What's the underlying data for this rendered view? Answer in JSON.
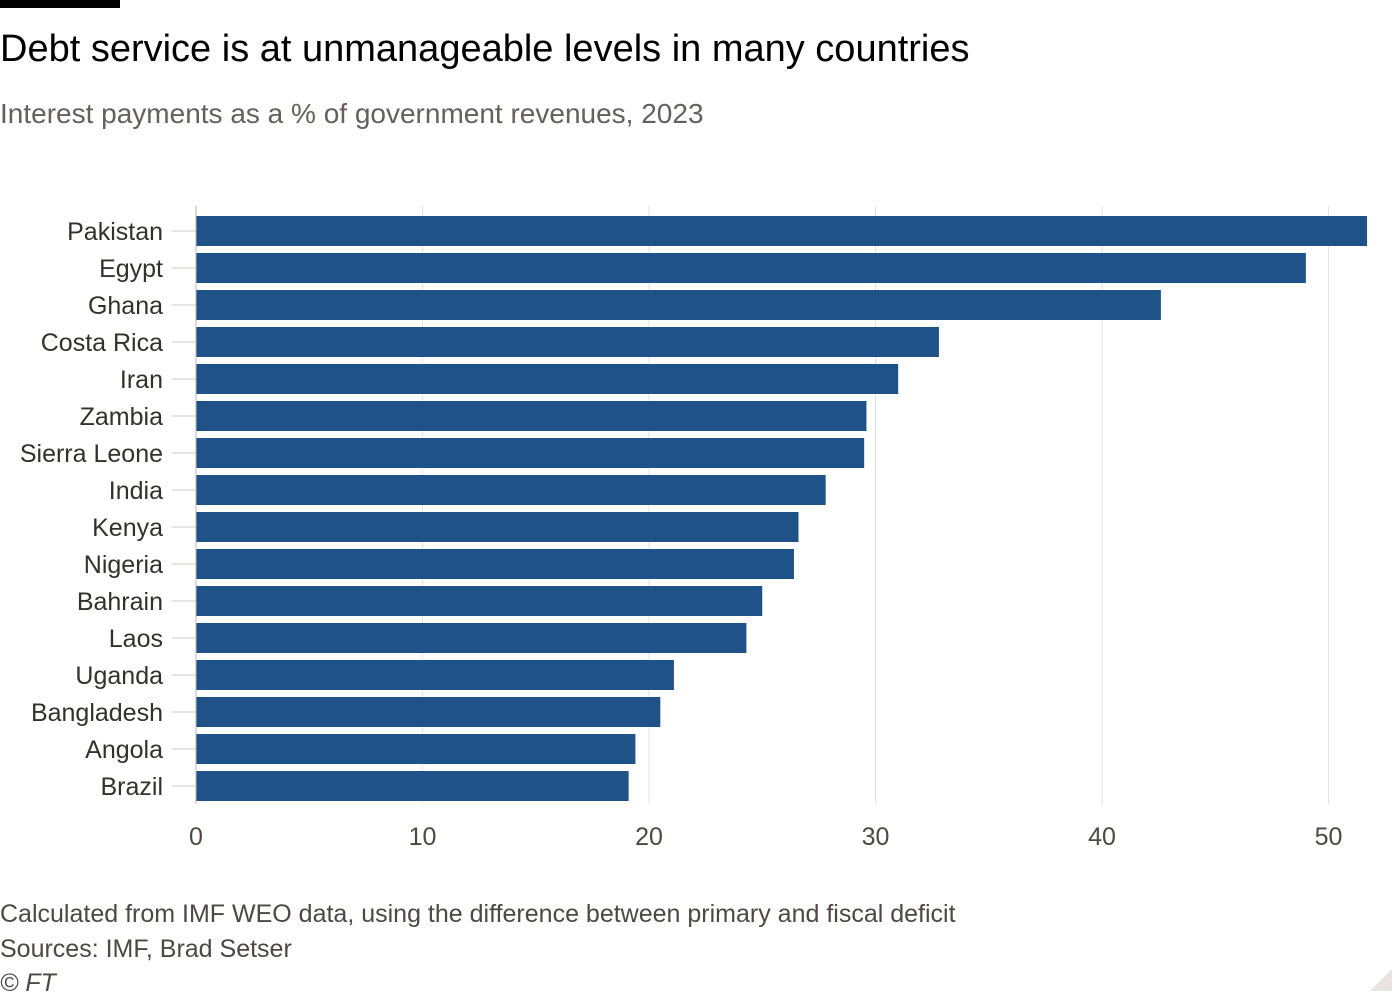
{
  "chart_data": {
    "type": "bar",
    "orientation": "horizontal",
    "title": "Debt service is at unmanageable levels in many countries",
    "subtitle": "Interest payments as a % of government revenues, 2023",
    "categories": [
      "Pakistan",
      "Egypt",
      "Ghana",
      "Costa Rica",
      "Iran",
      "Zambia",
      "Sierra Leone",
      "India",
      "Kenya",
      "Nigeria",
      "Bahrain",
      "Laos",
      "Uganda",
      "Bangladesh",
      "Angola",
      "Brazil"
    ],
    "values": [
      51.7,
      49.0,
      42.6,
      32.8,
      31.0,
      29.6,
      29.5,
      27.8,
      26.6,
      26.4,
      25.0,
      24.3,
      21.1,
      20.5,
      19.4,
      19.1
    ],
    "xticks": [
      0,
      10,
      20,
      30,
      40,
      50
    ],
    "xlim": [
      0,
      52
    ],
    "grid": true,
    "bar_color": "#1f5289",
    "gridline_color": "#e6e2de",
    "xlabel": "",
    "ylabel": ""
  },
  "footer": {
    "note": "Calculated from IMF WEO data, using the difference between primary and fiscal deficit",
    "sources": "Sources: IMF, Brad Setser",
    "copyright": "© FT"
  }
}
